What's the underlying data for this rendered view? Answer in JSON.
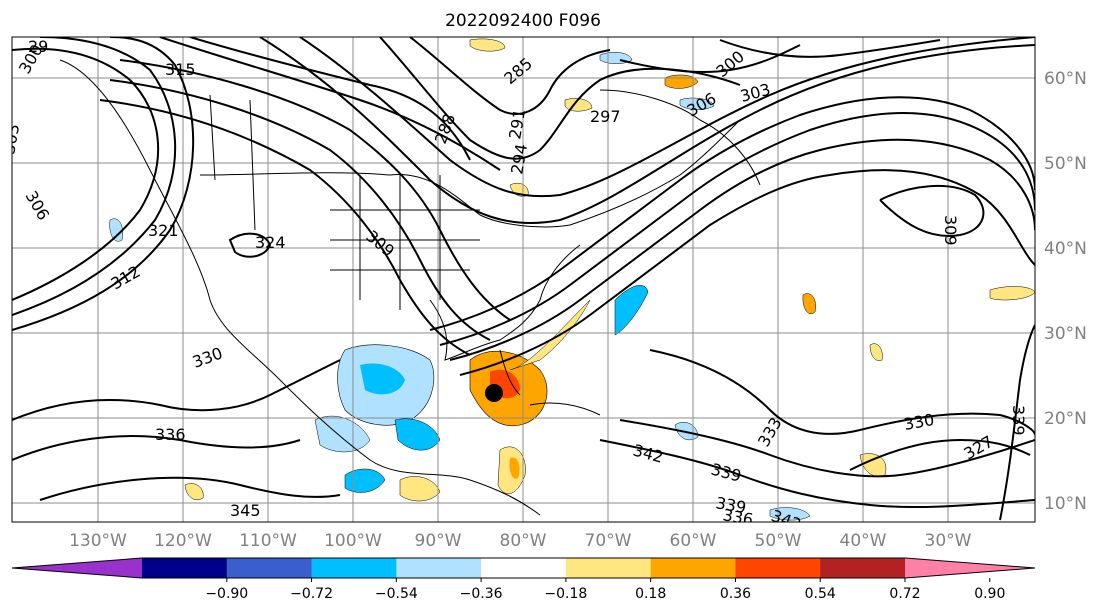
{
  "title": "2022092400 F096",
  "map": {
    "lon_labels": [
      "130°W",
      "120°W",
      "110°W",
      "100°W",
      "90°W",
      "80°W",
      "70°W",
      "60°W",
      "50°W",
      "40°W",
      "30°W"
    ],
    "lat_labels": [
      "60°N",
      "50°N",
      "40°N",
      "30°N",
      "20°N",
      "10°N"
    ],
    "contour_labels": [
      "29",
      "300",
      "303",
      "306",
      "315",
      "285",
      "288",
      "291",
      "294",
      "297",
      "300",
      "303",
      "306",
      "309",
      "309",
      "312",
      "321",
      "324",
      "333",
      "336",
      "339",
      "330",
      "342",
      "339",
      "336",
      "342",
      "345",
      "327",
      "339",
      "330"
    ]
  },
  "colorbar": {
    "labels": [
      "−0.90",
      "−0.72",
      "−0.54",
      "−0.36",
      "−0.18",
      "0.18",
      "0.36",
      "0.54",
      "0.72",
      "0.90"
    ],
    "colors": [
      "#9932cc",
      "#00008b",
      "#3a5fcd",
      "#00bfff",
      "#b0e2ff",
      "#ffffff",
      "#ffe680",
      "#ffa500",
      "#ff4500",
      "#b22222",
      "#ff7fa6"
    ]
  }
}
